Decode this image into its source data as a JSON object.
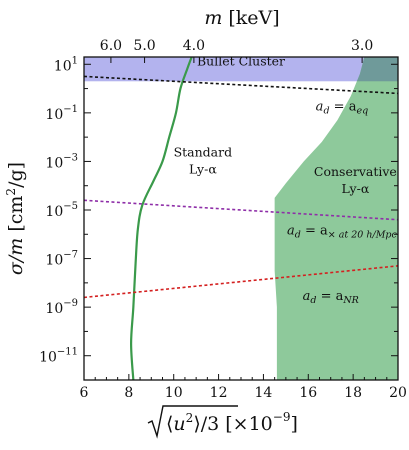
{
  "chart_data": {
    "type": "line",
    "title": "",
    "xlabel": "√⟨u²⟩/3 [×10⁻⁹]",
    "ylabel": "σ/m [cm²/g]",
    "top_xlabel": "m [keV]",
    "xlim": [
      6,
      20
    ],
    "ylim_log10": [
      -12,
      1.3
    ],
    "yscale": "log",
    "x_ticks": [
      "6",
      "8",
      "10",
      "12",
      "14",
      "16",
      "18",
      "20"
    ],
    "y_ticks": [
      {
        "label": "10",
        "exp": "1",
        "log10": 1
      },
      {
        "label": "10",
        "exp": "−1",
        "log10": -1
      },
      {
        "label": "10",
        "exp": "−3",
        "log10": -3
      },
      {
        "label": "10",
        "exp": "−5",
        "log10": -5
      },
      {
        "label": "10",
        "exp": "−7",
        "log10": -7
      },
      {
        "label": "10",
        "exp": "−9",
        "log10": -9
      },
      {
        "label": "10",
        "exp": "−11",
        "log10": -11
      }
    ],
    "top_ticks": [
      {
        "label": "6.0",
        "x": 7.2
      },
      {
        "label": "5.0",
        "x": 8.7
      },
      {
        "label": "4.0",
        "x": 10.9
      },
      {
        "label": "3.0",
        "x": 18.4
      }
    ],
    "regions": [
      {
        "name": "Bullet Cluster",
        "color": "#b3b3ee",
        "x_range": [
          6,
          20
        ],
        "log10_y_range": [
          0.3,
          1.3
        ]
      },
      {
        "name": "Conservative Ly-α",
        "color": "#8ec99b",
        "boundary": [
          {
            "x": 14.6,
            "log10_y": -12
          },
          {
            "x": 14.6,
            "log10_y": -9.0
          },
          {
            "x": 14.5,
            "log10_y": -7.5
          },
          {
            "x": 14.5,
            "log10_y": -4.5
          },
          {
            "x": 15.0,
            "log10_y": -3.9
          },
          {
            "x": 15.8,
            "log10_y": -3.0
          },
          {
            "x": 16.6,
            "log10_y": -2.2
          },
          {
            "x": 17.3,
            "log10_y": -1.3
          },
          {
            "x": 17.9,
            "log10_y": -0.3
          },
          {
            "x": 18.3,
            "log10_y": 0.6
          },
          {
            "x": 18.5,
            "log10_y": 1.3
          }
        ]
      }
    ],
    "series": [
      {
        "name": "Standard Ly-α",
        "color": "#3a9a4a",
        "points": [
          {
            "x": 8.2,
            "log10_y": -12
          },
          {
            "x": 8.1,
            "log10_y": -10.5
          },
          {
            "x": 8.2,
            "log10_y": -9.0
          },
          {
            "x": 8.3,
            "log10_y": -7.2
          },
          {
            "x": 8.4,
            "log10_y": -5.8
          },
          {
            "x": 8.6,
            "log10_y": -4.8
          },
          {
            "x": 9.1,
            "log10_y": -3.8
          },
          {
            "x": 9.5,
            "log10_y": -3.0
          },
          {
            "x": 9.8,
            "log10_y": -2.0
          },
          {
            "x": 10.1,
            "log10_y": -1.0
          },
          {
            "x": 10.3,
            "log10_y": 0.0
          },
          {
            "x": 10.6,
            "log10_y": 0.8
          },
          {
            "x": 10.8,
            "log10_y": 1.3
          }
        ]
      },
      {
        "name": "a_d = a_eq",
        "color": "#111111",
        "dash": true,
        "points": [
          {
            "x": 6,
            "log10_y": 0.5
          },
          {
            "x": 20,
            "log10_y": -0.2
          }
        ]
      },
      {
        "name": "a_d = a_× at 20 h/Mpc",
        "color": "#8e2ea8",
        "dash": true,
        "points": [
          {
            "x": 6,
            "log10_y": -4.6
          },
          {
            "x": 20,
            "log10_y": -5.4
          }
        ]
      },
      {
        "name": "a_d = a_NR",
        "color": "#d42020",
        "dash": true,
        "points": [
          {
            "x": 6,
            "log10_y": -8.6
          },
          {
            "x": 20,
            "log10_y": -7.3
          }
        ]
      }
    ],
    "annotations": [
      {
        "text": "Bullet Cluster",
        "x": 13.0,
        "log10_y": 0.95,
        "color": "#2020d8"
      },
      {
        "text": "Standard",
        "x": 11.3,
        "log10_y": -2.8,
        "color": "#3a7a4a"
      },
      {
        "text": "Ly-α",
        "x": 11.3,
        "log10_y": -3.5,
        "color": "#3a7a4a"
      },
      {
        "text": "Conservative",
        "x": 18.1,
        "log10_y": -3.6,
        "color": "#3a7a4a"
      },
      {
        "text": "Ly-α",
        "x": 18.1,
        "log10_y": -4.3,
        "color": "#3a7a4a"
      },
      {
        "text": "a_d = a_eq",
        "x": 17.5,
        "log10_y": -0.9,
        "color": "#111111"
      },
      {
        "text": "a_d = a_× at 20 h/Mpc",
        "x": 17.5,
        "log10_y": -6.0,
        "color": "#111111"
      },
      {
        "text": "a_d = a_NR",
        "x": 17.0,
        "log10_y": -8.7,
        "color": "#111111"
      }
    ]
  }
}
